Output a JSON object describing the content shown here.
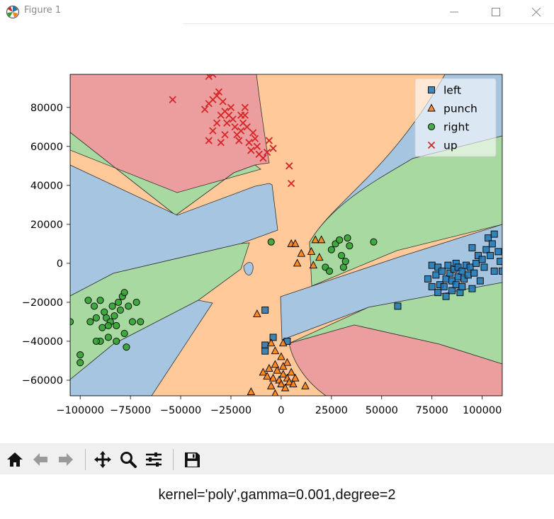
{
  "window": {
    "title": "Figure 1",
    "minimize_label": "—",
    "maximize_label": "☐",
    "close_label": "✕"
  },
  "caption": "kernel='poly',gamma=0.001,degree=2",
  "toolbar": {
    "buttons": [
      "home-icon",
      "back-arrow-icon",
      "forward-arrow-icon",
      "pan-icon",
      "zoom-icon",
      "configure-subplots-icon",
      "save-icon"
    ]
  },
  "chart_data": {
    "type": "scatter",
    "title": "",
    "xlabel": "",
    "ylabel": "",
    "xlim": [
      -105000,
      110000
    ],
    "ylim": [
      -68000,
      97000
    ],
    "xticks": [
      -100000,
      -75000,
      -50000,
      -25000,
      0,
      25000,
      50000,
      75000,
      100000
    ],
    "xtick_labels": [
      "−100000",
      "−75000",
      "−50000",
      "−25000",
      "0",
      "25000",
      "50000",
      "75000",
      "100000"
    ],
    "yticks": [
      -60000,
      -40000,
      -20000,
      0,
      20000,
      40000,
      60000,
      80000
    ],
    "ytick_labels": [
      "−60000",
      "−40000",
      "−20000",
      "0",
      "20000",
      "40000",
      "60000",
      "80000"
    ],
    "grid": false,
    "legend_position": "top-right",
    "background": "decision regions of an SVM classifier with a polynomial kernel",
    "series": [
      {
        "name": "left",
        "marker": "square",
        "color": "#1f77b4",
        "region_color": "#a6c5e0",
        "points": [
          [
            -8000,
            -24000
          ],
          [
            -4000,
            -38000
          ],
          [
            -8000,
            -42000
          ],
          [
            -8000,
            -45000
          ],
          [
            3000,
            -40000
          ],
          [
            58000,
            -22000
          ],
          [
            73000,
            -8000
          ],
          [
            75000,
            -12000
          ],
          [
            75000,
            -1000
          ],
          [
            77000,
            -6000
          ],
          [
            78000,
            -2000
          ],
          [
            78000,
            -15000
          ],
          [
            79000,
            -11000
          ],
          [
            80000,
            -4000
          ],
          [
            81000,
            -12000
          ],
          [
            82000,
            -8000
          ],
          [
            82000,
            -17000
          ],
          [
            83000,
            -1000
          ],
          [
            84000,
            -5000
          ],
          [
            85000,
            -9000
          ],
          [
            85000,
            -14000
          ],
          [
            86000,
            -3000
          ],
          [
            87000,
            -11000
          ],
          [
            87000,
            0
          ],
          [
            88000,
            -7000
          ],
          [
            88000,
            -2000
          ],
          [
            89000,
            -15000
          ],
          [
            90000,
            -4000
          ],
          [
            90000,
            -12000
          ],
          [
            91000,
            -8000
          ],
          [
            92000,
            -1000
          ],
          [
            93000,
            -6000
          ],
          [
            94000,
            -2000
          ],
          [
            95000,
            -13000
          ],
          [
            95000,
            8000
          ],
          [
            96000,
            -5000
          ],
          [
            97000,
            0
          ],
          [
            98000,
            4000
          ],
          [
            99000,
            -9000
          ],
          [
            100000,
            2000
          ],
          [
            101000,
            -2000
          ],
          [
            102000,
            7000
          ],
          [
            103000,
            13000
          ],
          [
            104000,
            4000
          ],
          [
            105000,
            10000
          ],
          [
            106000,
            15000
          ],
          [
            106000,
            -4000
          ],
          [
            108000,
            6000
          ],
          [
            109000,
            1000
          ],
          [
            110000,
            -4000
          ]
        ]
      },
      {
        "name": "punch",
        "marker": "triangle",
        "color": "#ff7f0e",
        "region_color": "#ffc999",
        "points": [
          [
            5000,
            10000
          ],
          [
            7000,
            10000
          ],
          [
            10000,
            5000
          ],
          [
            8000,
            0
          ],
          [
            15000,
            6000
          ],
          [
            17000,
            12000
          ],
          [
            20000,
            12000
          ],
          [
            19000,
            3000
          ],
          [
            16000,
            -1000
          ],
          [
            -12000,
            -26000
          ],
          [
            -5000,
            -41000
          ],
          [
            -3000,
            -45000
          ],
          [
            0,
            -48000
          ],
          [
            1000,
            -41000
          ],
          [
            3000,
            -51000
          ],
          [
            -9000,
            -56000
          ],
          [
            -7000,
            -58000
          ],
          [
            -4000,
            -59000
          ],
          [
            -2000,
            -55000
          ],
          [
            -1000,
            -60000
          ],
          [
            0,
            -62000
          ],
          [
            1000,
            -57000
          ],
          [
            2000,
            -64000
          ],
          [
            3000,
            -59000
          ],
          [
            4000,
            -61000
          ],
          [
            5000,
            -56000
          ],
          [
            6000,
            -62000
          ],
          [
            -6000,
            -54000
          ],
          [
            -3000,
            -52000
          ],
          [
            1000,
            -53000
          ],
          [
            -15000,
            -66000
          ],
          [
            -5000,
            -63000
          ],
          [
            12000,
            -63000
          ],
          [
            -3000,
            -67000
          ],
          [
            7000,
            -59000
          ]
        ]
      },
      {
        "name": "right",
        "marker": "circle",
        "color": "#2ca02c",
        "region_color": "#a8d9a0",
        "points": [
          [
            -105000,
            -30000
          ],
          [
            -96000,
            -19000
          ],
          [
            -93000,
            -22000
          ],
          [
            -92000,
            -28000
          ],
          [
            -90000,
            -19000
          ],
          [
            -89000,
            -33000
          ],
          [
            -88000,
            -25000
          ],
          [
            -87000,
            -28000
          ],
          [
            -86000,
            -38000
          ],
          [
            -85000,
            -30000
          ],
          [
            -84000,
            -22000
          ],
          [
            -83000,
            -27000
          ],
          [
            -82000,
            -32000
          ],
          [
            -81000,
            -20000
          ],
          [
            -80000,
            -24000
          ],
          [
            -79000,
            -17000
          ],
          [
            -78000,
            -15000
          ],
          [
            -78000,
            -36000
          ],
          [
            -77000,
            -43000
          ],
          [
            -76000,
            -22000
          ],
          [
            -74000,
            -30000
          ],
          [
            -72000,
            -20000
          ],
          [
            -70000,
            -30000
          ],
          [
            -90000,
            -40000
          ],
          [
            -92000,
            -40000
          ],
          [
            -100000,
            -47000
          ],
          [
            -100000,
            -51000
          ],
          [
            -82000,
            -40000
          ],
          [
            -86000,
            -32000
          ],
          [
            -95000,
            -30000
          ],
          [
            -5000,
            11000
          ],
          [
            22000,
            -2000
          ],
          [
            24000,
            -4000
          ],
          [
            25000,
            7000
          ],
          [
            27000,
            10000
          ],
          [
            29000,
            12000
          ],
          [
            30000,
            4000
          ],
          [
            31000,
            -2000
          ],
          [
            32000,
            1000
          ],
          [
            33000,
            13000
          ],
          [
            34000,
            9000
          ],
          [
            46000,
            11000
          ]
        ]
      },
      {
        "name": "up",
        "marker": "x",
        "color": "#d62728",
        "region_color": "#ec9d9e",
        "points": [
          [
            -36000,
            96000
          ],
          [
            -34000,
            97000
          ],
          [
            -54000,
            84000
          ],
          [
            -38000,
            79000
          ],
          [
            -36000,
            82000
          ],
          [
            -34000,
            84000
          ],
          [
            -32000,
            86000
          ],
          [
            -31000,
            88000
          ],
          [
            -29000,
            83000
          ],
          [
            -28000,
            78000
          ],
          [
            -27000,
            72000
          ],
          [
            -26000,
            76000
          ],
          [
            -25000,
            80000
          ],
          [
            -24000,
            74000
          ],
          [
            -23000,
            70000
          ],
          [
            -22000,
            66000
          ],
          [
            -21000,
            63000
          ],
          [
            -20000,
            68000
          ],
          [
            -19000,
            72000
          ],
          [
            -18000,
            76000
          ],
          [
            -17000,
            70000
          ],
          [
            -16000,
            62000
          ],
          [
            -15000,
            58000
          ],
          [
            -14000,
            67000
          ],
          [
            -13000,
            64000
          ],
          [
            -12000,
            60000
          ],
          [
            -11000,
            56000
          ],
          [
            -30000,
            76000
          ],
          [
            -32000,
            72000
          ],
          [
            -34000,
            68000
          ],
          [
            -36000,
            63000
          ],
          [
            -30000,
            62000
          ],
          [
            -28000,
            66000
          ],
          [
            -20000,
            76000
          ],
          [
            -18000,
            80000
          ],
          [
            -9000,
            54000
          ],
          [
            -7000,
            57000
          ],
          [
            -4000,
            59000
          ],
          [
            -6000,
            63000
          ],
          [
            4000,
            50000
          ],
          [
            5000,
            41000
          ]
        ]
      }
    ]
  }
}
